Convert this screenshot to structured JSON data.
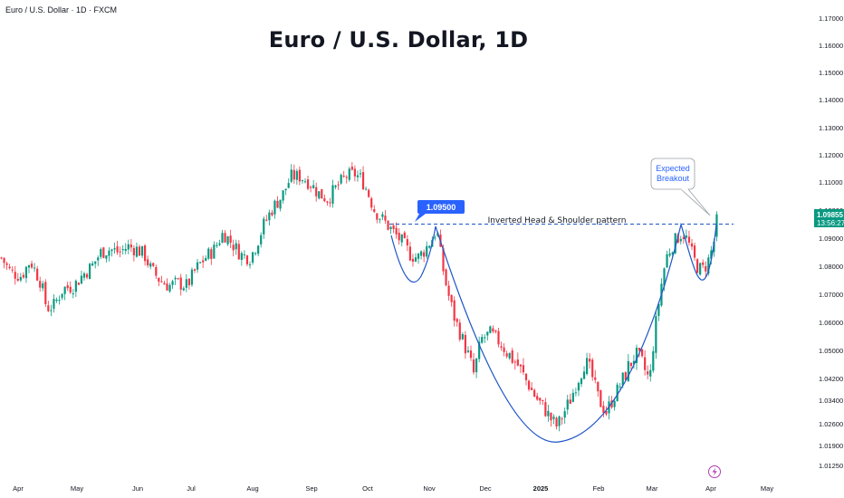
{
  "header": {
    "symbol_label": "Euro / U.S. Dollar · 1D · FXCM"
  },
  "colors": {
    "up": "#089981",
    "down": "#f23645",
    "accent": "#2962ff",
    "pattern_line": "#1e56c8",
    "price_tag": "#089981"
  },
  "chart_data": {
    "type": "candlestick",
    "title": "Euro / U.S. Dollar, 1D",
    "y_axis": {
      "ticks": [
        "1.17000",
        "1.16000",
        "1.15000",
        "1.14000",
        "1.13000",
        "1.12000",
        "1.11000",
        "1.10000",
        "1.09000",
        "1.08000",
        "1.07000",
        "1.06000",
        "1.05000",
        "1.04200",
        "1.03400",
        "1.02600",
        "1.01900",
        "1.01250"
      ],
      "range": [
        1.0105,
        1.1715
      ]
    },
    "x_axis": {
      "ticks": [
        "Apr",
        "May",
        "Jun",
        "Jul",
        "Aug",
        "Sep",
        "Oct",
        "Nov",
        "Dec",
        "2025",
        "Feb",
        "Mar",
        "Apr",
        "May"
      ]
    },
    "price_path": [
      [
        0,
        1.083
      ],
      [
        10,
        1.078
      ],
      [
        22,
        1.0765
      ],
      [
        32,
        1.082
      ],
      [
        44,
        1.074
      ],
      [
        50,
        1.065
      ],
      [
        58,
        1.066
      ],
      [
        68,
        1.072
      ],
      [
        80,
        1.073
      ],
      [
        90,
        1.077
      ],
      [
        100,
        1.08
      ],
      [
        110,
        1.085
      ],
      [
        120,
        1.086
      ],
      [
        130,
        1.085
      ],
      [
        140,
        1.087
      ],
      [
        150,
        1.086
      ],
      [
        158,
        1.084
      ],
      [
        165,
        1.079
      ],
      [
        175,
        1.075
      ],
      [
        185,
        1.073
      ],
      [
        195,
        1.074
      ],
      [
        205,
        1.073
      ],
      [
        215,
        1.079
      ],
      [
        225,
        1.083
      ],
      [
        235,
        1.086
      ],
      [
        245,
        1.092
      ],
      [
        255,
        1.088
      ],
      [
        265,
        1.084
      ],
      [
        275,
        1.083
      ],
      [
        282,
        1.088
      ],
      [
        290,
        1.095
      ],
      [
        300,
        1.101
      ],
      [
        310,
        1.105
      ],
      [
        320,
        1.112
      ],
      [
        330,
        1.112
      ],
      [
        340,
        1.11
      ],
      [
        350,
        1.106
      ],
      [
        360,
        1.104
      ],
      [
        370,
        1.108
      ],
      [
        380,
        1.112
      ],
      [
        390,
        1.113
      ],
      [
        398,
        1.111
      ],
      [
        405,
        1.106
      ],
      [
        412,
        1.1
      ],
      [
        420,
        1.097
      ],
      [
        428,
        1.094
      ],
      [
        436,
        1.091
      ],
      [
        444,
        1.088
      ],
      [
        452,
        1.084
      ],
      [
        460,
        1.083
      ],
      [
        468,
        1.086
      ],
      [
        476,
        1.09
      ],
      [
        481,
        1.093
      ],
      [
        486,
        1.082
      ],
      [
        492,
        1.072
      ],
      [
        500,
        1.062
      ],
      [
        508,
        1.055
      ],
      [
        516,
        1.048
      ],
      [
        522,
        1.043
      ],
      [
        530,
        1.054
      ],
      [
        540,
        1.056
      ],
      [
        550,
        1.053
      ],
      [
        560,
        1.049
      ],
      [
        570,
        1.046
      ],
      [
        580,
        1.041
      ],
      [
        590,
        1.035
      ],
      [
        600,
        1.031
      ],
      [
        608,
        1.027
      ],
      [
        614,
        1.025
      ],
      [
        620,
        1.029
      ],
      [
        628,
        1.034
      ],
      [
        636,
        1.041
      ],
      [
        644,
        1.047
      ],
      [
        652,
        1.043
      ],
      [
        660,
        1.034
      ],
      [
        668,
        1.03
      ],
      [
        676,
        1.035
      ],
      [
        684,
        1.04
      ],
      [
        692,
        1.045
      ],
      [
        700,
        1.049
      ],
      [
        708,
        1.046
      ],
      [
        716,
        1.041
      ],
      [
        722,
        1.058
      ],
      [
        728,
        1.072
      ],
      [
        734,
        1.083
      ],
      [
        740,
        1.087
      ],
      [
        746,
        1.09
      ],
      [
        752,
        1.092
      ],
      [
        758,
        1.089
      ],
      [
        764,
        1.083
      ],
      [
        770,
        1.079
      ],
      [
        776,
        1.079
      ],
      [
        782,
        1.083
      ],
      [
        787,
        1.089
      ],
      [
        790,
        1.0985
      ]
    ],
    "current_price": "1.09855",
    "countdown": "13:56:27",
    "resistance_level": 1.095,
    "resistance_label": "1.09500",
    "pattern_label": "Inverted Head & Shoulder pattern",
    "callout": {
      "line1": "Expected",
      "line2": "Breakout"
    }
  }
}
